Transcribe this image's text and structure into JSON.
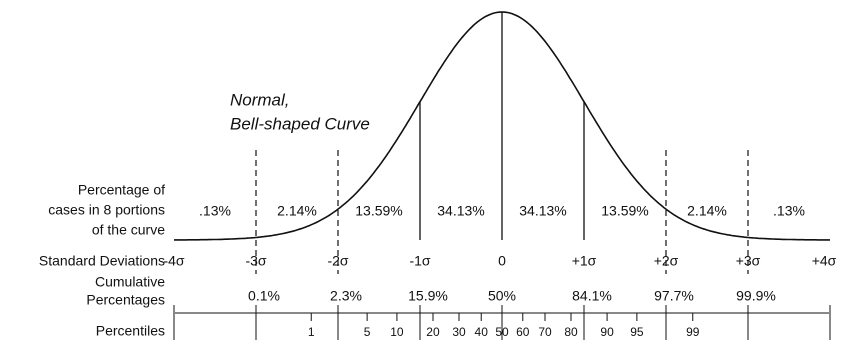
{
  "title": {
    "lines": [
      "Normal,",
      "Bell-shaped Curve"
    ]
  },
  "portions": {
    "label": [
      "Percentage of",
      "cases in 8 portions",
      "of the curve"
    ],
    "values": [
      ".13%",
      "2.14%",
      "13.59%",
      "34.13%",
      "34.13%",
      "13.59%",
      "2.14%",
      ".13%"
    ]
  },
  "standard_deviations": {
    "label": "Standard Deviations",
    "values": [
      "-4σ",
      "-3σ",
      "-2σ",
      "-1σ",
      "0",
      "+1σ",
      "+2σ",
      "+3σ",
      "+4σ"
    ]
  },
  "cumulative": {
    "label": [
      "Cumulative",
      "Percentages"
    ],
    "values": [
      "0.1%",
      "2.3%",
      "15.9%",
      "50%",
      "84.1%",
      "97.7%",
      "99.9%"
    ]
  },
  "percentiles": {
    "label": "Percentiles",
    "values": [
      1,
      5,
      10,
      20,
      30,
      40,
      50,
      60,
      70,
      80,
      90,
      95,
      99
    ]
  }
}
